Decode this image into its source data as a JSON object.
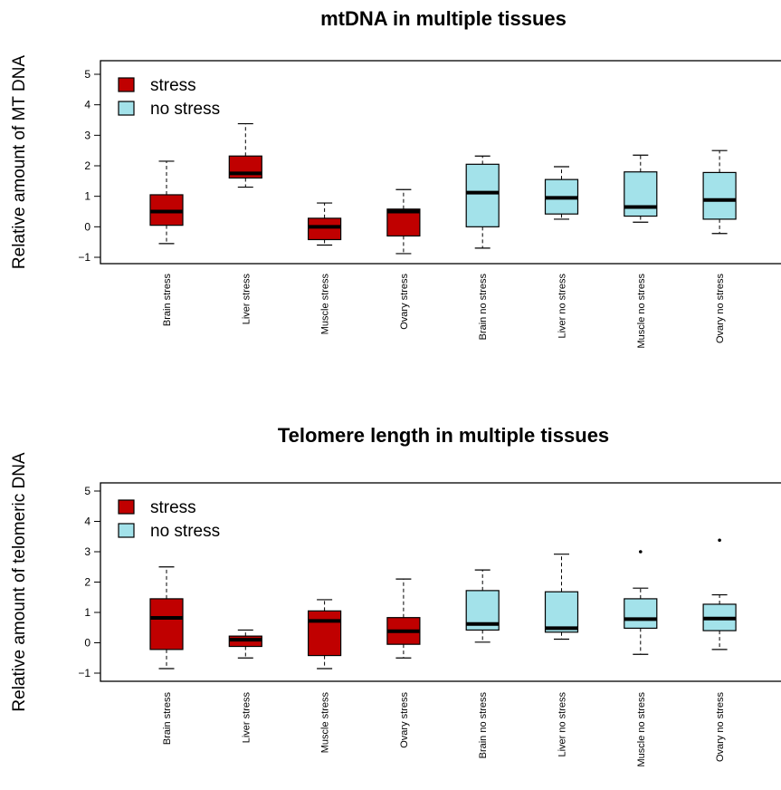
{
  "colors": {
    "stress": "#c00000",
    "no_stress": "#a3e2ea",
    "axis": "#000000"
  },
  "chart_data": [
    {
      "type": "boxplot",
      "title": "mtDNA in multiple tissues",
      "ylabel": "Relative amount of MT DNA",
      "xlabel": "",
      "ylim": [
        -1.2,
        5.2
      ],
      "yticks": [
        -1,
        0,
        1,
        2,
        3,
        4,
        5
      ],
      "legend": {
        "position": "top-left",
        "entries": [
          "stress",
          "no stress"
        ]
      },
      "categories": [
        "Brain stress",
        "Liver stress",
        "Muscle stress",
        "Ovary stress",
        "Brain no stress",
        "Liver no stress",
        "Muscle no stress",
        "Ovary no stress"
      ],
      "groups": [
        "stress",
        "stress",
        "stress",
        "stress",
        "no stress",
        "no stress",
        "no stress",
        "no stress"
      ],
      "boxes": [
        {
          "whisker_low": -0.55,
          "q1": 0.05,
          "median": 0.5,
          "q3": 1.05,
          "whisker_high": 2.15,
          "outliers": []
        },
        {
          "whisker_low": 1.3,
          "q1": 1.6,
          "median": 1.75,
          "q3": 2.32,
          "whisker_high": 3.38,
          "outliers": []
        },
        {
          "whisker_low": -0.6,
          "q1": -0.42,
          "median": 0.0,
          "q3": 0.28,
          "whisker_high": 0.78,
          "outliers": []
        },
        {
          "whisker_low": -0.88,
          "q1": -0.3,
          "median": 0.5,
          "q3": 0.58,
          "whisker_high": 1.22,
          "outliers": []
        },
        {
          "whisker_low": -0.7,
          "q1": 0.0,
          "median": 1.12,
          "q3": 2.05,
          "whisker_high": 2.32,
          "outliers": []
        },
        {
          "whisker_low": 0.25,
          "q1": 0.42,
          "median": 0.95,
          "q3": 1.55,
          "whisker_high": 1.97,
          "outliers": []
        },
        {
          "whisker_low": 0.15,
          "q1": 0.35,
          "median": 0.65,
          "q3": 1.8,
          "whisker_high": 2.35,
          "outliers": []
        },
        {
          "whisker_low": -0.22,
          "q1": 0.25,
          "median": 0.88,
          "q3": 1.78,
          "whisker_high": 2.5,
          "outliers": []
        }
      ]
    },
    {
      "type": "boxplot",
      "title": "Telomere length in multiple tissues",
      "ylabel": "Relative amount of telomeric DNA",
      "xlabel": "",
      "ylim": [
        -1.2,
        5.2
      ],
      "yticks": [
        -1,
        0,
        1,
        2,
        3,
        4,
        5
      ],
      "legend": {
        "position": "top-left",
        "entries": [
          "stress",
          "no stress"
        ]
      },
      "categories": [
        "Brain stress",
        "Liver stress",
        "Muscle stress",
        "Ovary stress",
        "Brain no stress",
        "Liver no stress",
        "Muscle no stress",
        "Ovary no stress"
      ],
      "groups": [
        "stress",
        "stress",
        "stress",
        "stress",
        "no stress",
        "no stress",
        "no stress",
        "no stress"
      ],
      "boxes": [
        {
          "whisker_low": -0.85,
          "q1": -0.22,
          "median": 0.82,
          "q3": 1.45,
          "whisker_high": 2.5,
          "outliers": []
        },
        {
          "whisker_low": -0.5,
          "q1": -0.12,
          "median": 0.1,
          "q3": 0.22,
          "whisker_high": 0.42,
          "outliers": []
        },
        {
          "whisker_low": -0.85,
          "q1": -0.42,
          "median": 0.72,
          "q3": 1.05,
          "whisker_high": 1.42,
          "outliers": []
        },
        {
          "whisker_low": -0.5,
          "q1": -0.05,
          "median": 0.38,
          "q3": 0.83,
          "whisker_high": 2.1,
          "outliers": []
        },
        {
          "whisker_low": 0.02,
          "q1": 0.42,
          "median": 0.62,
          "q3": 1.72,
          "whisker_high": 2.4,
          "outliers": []
        },
        {
          "whisker_low": 0.12,
          "q1": 0.35,
          "median": 0.48,
          "q3": 1.68,
          "whisker_high": 2.92,
          "outliers": []
        },
        {
          "whisker_low": -0.38,
          "q1": 0.48,
          "median": 0.78,
          "q3": 1.45,
          "whisker_high": 1.8,
          "outliers": [
            3.0
          ]
        },
        {
          "whisker_low": -0.22,
          "q1": 0.4,
          "median": 0.8,
          "q3": 1.27,
          "whisker_high": 1.58,
          "outliers": [
            3.38
          ]
        }
      ]
    }
  ]
}
